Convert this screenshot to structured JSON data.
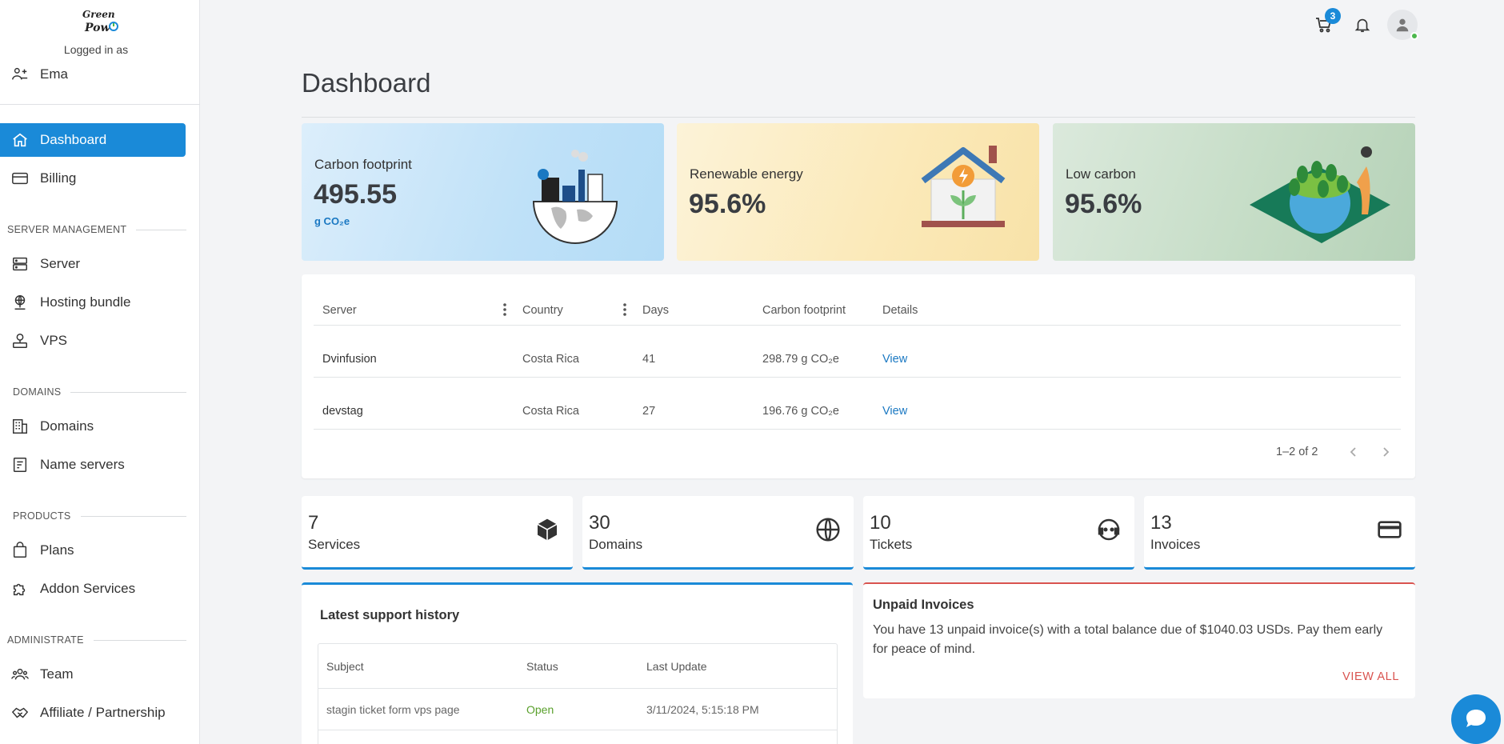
{
  "sidebar": {
    "logged_in_label": "Logged in as",
    "user_name": "Ema",
    "items": {
      "dashboard": "Dashboard",
      "billing": "Billing",
      "server": "Server",
      "hosting": "Hosting bundle",
      "vps": "VPS",
      "domains": "Domains",
      "nameservers": "Name servers",
      "plans": "Plans",
      "addons": "Addon Services",
      "team": "Team",
      "affiliate": "Affiliate / Partnership"
    },
    "sections": {
      "server_mgmt": "SERVER MANAGEMENT",
      "domains": "DOMAINS",
      "products": "PRODUCTS",
      "administrate": "ADMINISTRATE"
    }
  },
  "header": {
    "cart_count": "3",
    "title": "Dashboard"
  },
  "stats": {
    "carbon": {
      "label": "Carbon footprint",
      "value": "495.55",
      "unit": "g CO₂e"
    },
    "renewable": {
      "label": "Renewable energy",
      "value": "95.6%"
    },
    "low_carbon": {
      "label": "Low carbon",
      "value": "95.6%"
    }
  },
  "server_table": {
    "columns": [
      "Server",
      "Country",
      "Days",
      "Carbon footprint",
      "Details"
    ],
    "rows": [
      {
        "server": "Dvinfusion",
        "country": "Costa Rica",
        "days": "41",
        "carbon": "298.79 g CO₂e",
        "details": "View"
      },
      {
        "server": "devstag",
        "country": "Costa Rica",
        "days": "27",
        "carbon": "196.76 g CO₂e",
        "details": "View"
      }
    ],
    "pagination": "1–2 of 2"
  },
  "counts": [
    {
      "value": "7",
      "label": "Services"
    },
    {
      "value": "30",
      "label": "Domains"
    },
    {
      "value": "10",
      "label": "Tickets"
    },
    {
      "value": "13",
      "label": "Invoices"
    }
  ],
  "support": {
    "title": "Latest support history",
    "columns": [
      "Subject",
      "Status",
      "Last Update"
    ],
    "rows": [
      {
        "subject": "stagin ticket form vps page",
        "status": "Open",
        "updated": "3/11/2024, 5:15:18 PM"
      }
    ]
  },
  "unpaid": {
    "title": "Unpaid Invoices",
    "message": "You have 13 unpaid invoice(s) with a total balance due of $1040.03 USDs. Pay them early for peace of mind.",
    "action": "VIEW ALL"
  },
  "colors": {
    "accent": "#1a8ad8",
    "open_status": "#5aa02c",
    "danger": "#d9534f"
  }
}
